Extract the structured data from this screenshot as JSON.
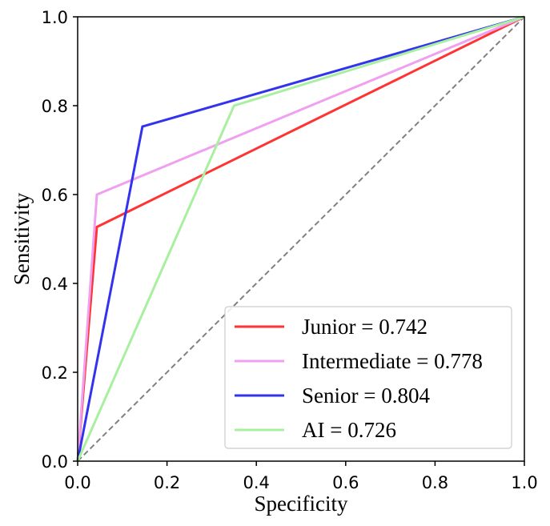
{
  "chart_data": {
    "type": "line",
    "title": "",
    "xlabel": "Specificity",
    "ylabel": "Sensitivity",
    "xlim": [
      0.0,
      1.0
    ],
    "ylim": [
      0.0,
      1.0
    ],
    "x_ticks": [
      "0.0",
      "0.2",
      "0.4",
      "0.6",
      "0.8",
      "1.0"
    ],
    "y_ticks": [
      "0.0",
      "0.2",
      "0.4",
      "0.6",
      "0.8",
      "1.0"
    ],
    "grid": false,
    "legend_position": "lower-right",
    "series": [
      {
        "name": "Junior = 0.742",
        "color": "#ff3333",
        "x": [
          0.0,
          0.043,
          1.0
        ],
        "y": [
          0.0,
          0.527,
          1.0
        ]
      },
      {
        "name": "Intermediate = 0.778",
        "color": "#f0a0f0",
        "x": [
          0.0,
          0.043,
          1.0
        ],
        "y": [
          0.0,
          0.6,
          1.0
        ]
      },
      {
        "name": "Senior = 0.804",
        "color": "#3333ee",
        "x": [
          0.0,
          0.145,
          1.0
        ],
        "y": [
          0.0,
          0.753,
          1.0
        ]
      },
      {
        "name": "AI = 0.726",
        "color": "#a8f0a0",
        "x": [
          0.0,
          0.35,
          1.0
        ],
        "y": [
          0.0,
          0.8,
          1.0
        ]
      }
    ],
    "reference_line": {
      "x": [
        0.0,
        1.0
      ],
      "y": [
        0.0,
        1.0
      ],
      "color": "#808080",
      "style": "dashed"
    }
  }
}
